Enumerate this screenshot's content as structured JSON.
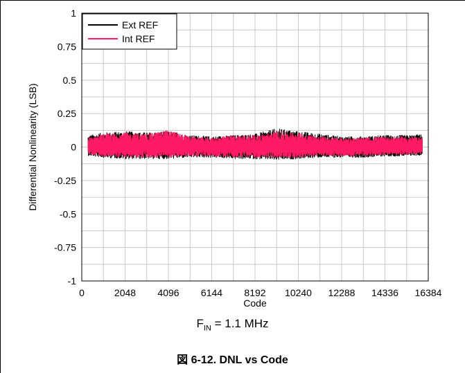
{
  "chart_data": {
    "type": "line",
    "xlabel": "Code",
    "ylabel": "Differential Nonlinearity (LSB)",
    "xlim": [
      0,
      16384
    ],
    "ylim": [
      -1,
      1
    ],
    "x_ticks": [
      "0",
      "2048",
      "4096",
      "6144",
      "8192",
      "10240",
      "12288",
      "14336",
      "16384"
    ],
    "y_ticks": [
      "1",
      "0.75",
      "0.5",
      "0.25",
      "0",
      "-0.25",
      "-0.5",
      "-0.75",
      "-1"
    ],
    "grid": true,
    "legend_position": "top-left",
    "series": [
      {
        "name": "Ext REF",
        "color": "#000000",
        "x": [
          0,
          1024,
          2048,
          3072,
          4096,
          5120,
          6144,
          7168,
          8192,
          9216,
          10240,
          11264,
          12288,
          13312,
          14336,
          15360,
          16384
        ],
        "upper": [
          0.08,
          0.11,
          0.12,
          0.11,
          0.12,
          0.09,
          0.08,
          0.09,
          0.1,
          0.14,
          0.12,
          0.1,
          0.08,
          0.08,
          0.09,
          0.09,
          0.1
        ],
        "lower": [
          -0.06,
          -0.08,
          -0.09,
          -0.09,
          -0.09,
          -0.08,
          -0.08,
          -0.09,
          -0.09,
          -0.1,
          -0.09,
          -0.08,
          -0.08,
          -0.08,
          -0.07,
          -0.07,
          -0.06
        ]
      },
      {
        "name": "Int REF",
        "color": "#FF1A66",
        "x": [
          0,
          1024,
          2048,
          3072,
          4096,
          5120,
          6144,
          7168,
          8192,
          9216,
          10240,
          11264,
          12288,
          13312,
          14336,
          15360,
          16384
        ],
        "upper": [
          0.06,
          0.1,
          0.11,
          0.1,
          0.13,
          0.08,
          0.07,
          0.09,
          0.09,
          0.12,
          0.11,
          0.08,
          0.07,
          0.07,
          0.08,
          0.08,
          0.07
        ],
        "lower": [
          -0.05,
          -0.07,
          -0.08,
          -0.08,
          -0.08,
          -0.07,
          -0.07,
          -0.08,
          -0.08,
          -0.08,
          -0.08,
          -0.07,
          -0.07,
          -0.07,
          -0.06,
          -0.06,
          -0.05
        ]
      }
    ]
  },
  "note": {
    "prefix": "F",
    "subscript": "IN",
    "suffix": " = 1.1 MHz"
  },
  "caption": "図 6-12. DNL vs Code"
}
